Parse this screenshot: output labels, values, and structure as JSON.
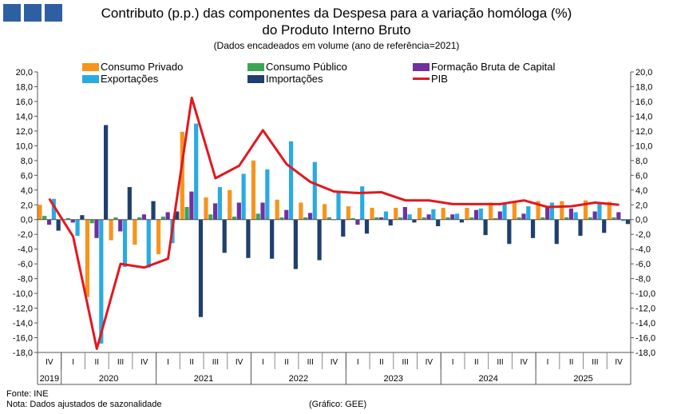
{
  "title_line1": "Contributo (p.p.) das componentes da Despesa para a variação homóloga (%)",
  "title_line2": "do Produto Interno Bruto",
  "subtitle": "(Dados encadeados em volume  (ano de referência=2021)",
  "footer": {
    "source": "Fonte:  INE",
    "note": "Nota: Dados ajustados de sazonalidade",
    "credit": "(Gráfico: GEE)"
  },
  "colors": {
    "consumo_privado": "#f7941d",
    "consumo_publico": "#3aa655",
    "fbc": "#7030a0",
    "exportacoes": "#29abe2",
    "importacoes": "#1f3f6e",
    "pib": "#e2171e",
    "logo": "#2f5fa3"
  },
  "chart_data": {
    "type": "bar",
    "title": "Contributo (p.p.) das componentes da Despesa para a variação homóloga (%) do Produto Interno Bruto",
    "ylim": [
      -18,
      20
    ],
    "yticks": [
      "20,0",
      "18,0",
      "16,0",
      "14,0",
      "12,0",
      "10,0",
      "8,0",
      "6,0",
      "4,0",
      "2,0",
      "0,0",
      "-2,0",
      "-4,0",
      "-6,0",
      "-8,0",
      "-10,0",
      "-12,0",
      "-14,0",
      "-16,0",
      "-18,0"
    ],
    "categories": [
      "IV",
      "I",
      "II",
      "III",
      "IV",
      "I",
      "II",
      "III",
      "IV",
      "I",
      "II",
      "III",
      "IV",
      "I",
      "II",
      "III",
      "IV",
      "I",
      "II",
      "III",
      "IV",
      "I",
      "II",
      "III",
      "IV"
    ],
    "years": [
      {
        "label": "2019",
        "start": 0,
        "count": 1
      },
      {
        "label": "2020",
        "start": 1,
        "count": 4
      },
      {
        "label": "2021",
        "start": 5,
        "count": 4
      },
      {
        "label": "2022",
        "start": 9,
        "count": 4
      },
      {
        "label": "2023",
        "start": 13,
        "count": 4
      },
      {
        "label": "2024",
        "start": 17,
        "count": 4
      },
      {
        "label": "2025",
        "start": 21,
        "count": 4
      }
    ],
    "series": [
      {
        "name": "Consumo Privado",
        "key": "consumo_privado",
        "kind": "bar",
        "values": [
          2.0,
          -0.1,
          -10.5,
          -2.8,
          -3.4,
          -4.7,
          11.9,
          3.0,
          4.0,
          8.0,
          2.7,
          2.3,
          2.1,
          1.8,
          1.6,
          1.6,
          1.6,
          1.6,
          1.6,
          2.3,
          2.4,
          2.5,
          2.5,
          2.6,
          2.4
        ]
      },
      {
        "name": "Consumo Público",
        "key": "consumo_publico",
        "kind": "bar",
        "values": [
          0.5,
          0.2,
          -0.5,
          0.3,
          0.3,
          0.4,
          1.7,
          0.7,
          0.4,
          0.8,
          0.3,
          0.3,
          0.3,
          0.2,
          0.3,
          0.3,
          0.3,
          0.3,
          0.3,
          0.2,
          0.3,
          0.3,
          0.3,
          0.3,
          0.3
        ]
      },
      {
        "name": "Formação Bruta de Capital",
        "key": "fbc",
        "kind": "bar",
        "values": [
          -0.7,
          -0.4,
          -2.5,
          -1.6,
          0.7,
          1.0,
          3.8,
          2.2,
          2.3,
          2.3,
          1.3,
          0.9,
          0.0,
          -0.7,
          0.3,
          1.7,
          0.7,
          0.7,
          1.3,
          1.1,
          0.8,
          1.7,
          1.5,
          1.1,
          1.0
        ]
      },
      {
        "name": "Exportações",
        "key": "exportacoes",
        "kind": "bar",
        "values": [
          2.8,
          -2.2,
          -16.8,
          -6.4,
          -6.5,
          -3.2,
          13.0,
          4.4,
          6.2,
          6.8,
          10.6,
          7.8,
          3.9,
          4.5,
          1.1,
          0.7,
          1.4,
          0.8,
          1.5,
          2.2,
          1.8,
          2.3,
          1.0,
          2.1,
          -0.2
        ]
      },
      {
        "name": "Importações",
        "key": "importacoes",
        "kind": "bar",
        "values": [
          -1.5,
          0.6,
          12.8,
          4.4,
          2.5,
          1.1,
          -13.2,
          -4.5,
          -5.2,
          -5.3,
          -6.7,
          -5.5,
          -2.3,
          -1.9,
          -0.8,
          -0.4,
          -0.9,
          -0.4,
          -2.1,
          -3.3,
          -2.5,
          -3.3,
          -2.2,
          -1.8,
          -0.6
        ]
      },
      {
        "name": "PIB",
        "key": "pib",
        "kind": "line",
        "values": [
          2.8,
          -2.3,
          -17.5,
          -6.0,
          -6.5,
          -5.3,
          16.5,
          5.6,
          7.3,
          12.1,
          7.5,
          5.1,
          3.8,
          3.6,
          3.7,
          2.6,
          2.6,
          2.1,
          2.1,
          2.1,
          2.6,
          1.7,
          1.8,
          2.3,
          2.0
        ]
      }
    ]
  }
}
